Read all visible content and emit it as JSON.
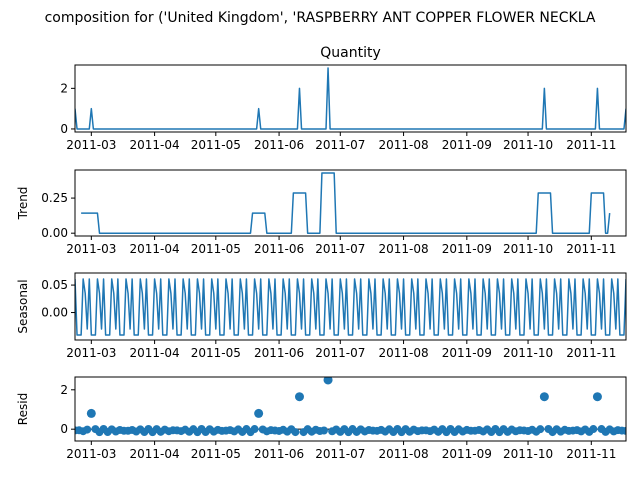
{
  "figure": {
    "title": "composition for ('United Kingdom', 'RASPBERRY ANT COPPER FLOWER NECKLA"
  },
  "colors": {
    "line": "#1f77b4",
    "axis": "#000000",
    "background": "#ffffff"
  },
  "x_tick_labels": [
    "2011-03",
    "2011-04",
    "2011-05",
    "2011-06",
    "2011-07",
    "2011-08",
    "2011-09",
    "2011-10",
    "2011-11"
  ],
  "chart_data": [
    {
      "type": "line",
      "title": "Quantity",
      "ylabel": "",
      "xlim": [
        "2011-02-21",
        "2011-11-18"
      ],
      "ylim": [
        -0.15,
        3.15
      ],
      "yticks": [
        0,
        2
      ],
      "ytick_labels": [
        "0",
        "2"
      ],
      "series": [
        {
          "points": [
            [
              "2011-02-21",
              1
            ],
            [
              "2011-02-22",
              0
            ],
            [
              "2011-02-28",
              0
            ],
            [
              "2011-03-01",
              1
            ],
            [
              "2011-03-02",
              0
            ],
            [
              "2011-05-21",
              0
            ],
            [
              "2011-05-22",
              1
            ],
            [
              "2011-05-23",
              0
            ],
            [
              "2011-06-10",
              0
            ],
            [
              "2011-06-11",
              2
            ],
            [
              "2011-06-12",
              0
            ],
            [
              "2011-06-24",
              0
            ],
            [
              "2011-06-25",
              3
            ],
            [
              "2011-06-26",
              0
            ],
            [
              "2011-10-08",
              0
            ],
            [
              "2011-10-09",
              2
            ],
            [
              "2011-10-10",
              0
            ],
            [
              "2011-11-03",
              0
            ],
            [
              "2011-11-04",
              2
            ],
            [
              "2011-11-05",
              0
            ],
            [
              "2011-11-17",
              0
            ],
            [
              "2011-11-18",
              1
            ]
          ]
        }
      ]
    },
    {
      "type": "line",
      "title": "",
      "ylabel": "Trend",
      "xlim": [
        "2011-02-21",
        "2011-11-18"
      ],
      "ylim": [
        -0.02,
        0.45
      ],
      "yticks": [
        0,
        0.25
      ],
      "ytick_labels": [
        "0.00",
        "0.25"
      ],
      "series": [
        {
          "points": [
            [
              "2011-02-24",
              0.143
            ],
            [
              "2011-02-25",
              0.143
            ],
            [
              "2011-02-26",
              0.143
            ],
            [
              "2011-03-04",
              0.143
            ],
            [
              "2011-03-05",
              0
            ],
            [
              "2011-05-18",
              0
            ],
            [
              "2011-05-19",
              0.143
            ],
            [
              "2011-05-25",
              0.143
            ],
            [
              "2011-05-26",
              0
            ],
            [
              "2011-06-07",
              0
            ],
            [
              "2011-06-08",
              0.286
            ],
            [
              "2011-06-14",
              0.286
            ],
            [
              "2011-06-15",
              0
            ],
            [
              "2011-06-21",
              0
            ],
            [
              "2011-06-22",
              0.429
            ],
            [
              "2011-06-28",
              0.429
            ],
            [
              "2011-06-29",
              0
            ],
            [
              "2011-10-05",
              0
            ],
            [
              "2011-10-06",
              0.286
            ],
            [
              "2011-10-12",
              0.286
            ],
            [
              "2011-10-13",
              0
            ],
            [
              "2011-10-31",
              0
            ],
            [
              "2011-11-01",
              0.286
            ],
            [
              "2011-11-07",
              0.286
            ],
            [
              "2011-11-08",
              0
            ],
            [
              "2011-11-09",
              0
            ],
            [
              "2011-11-10",
              0.143
            ]
          ]
        }
      ]
    },
    {
      "type": "line",
      "title": "",
      "ylabel": "Seasonal",
      "xlim": [
        "2011-02-21",
        "2011-11-18"
      ],
      "ylim": [
        -0.05,
        0.072
      ],
      "yticks": [
        0,
        0.05
      ],
      "ytick_labels": [
        "0.00",
        "0.05"
      ],
      "seasonal_period_days": 7,
      "seasonal_pattern": [
        0.061,
        -0.041,
        -0.041,
        -0.041,
        0.061,
        0.035,
        -0.03
      ],
      "series": [
        {
          "start": "2011-02-21",
          "end": "2011-11-18"
        }
      ]
    },
    {
      "type": "scatter",
      "title": "",
      "ylabel": "Resid",
      "xlim": [
        "2011-02-21",
        "2011-11-18"
      ],
      "ylim": [
        -0.6,
        2.65
      ],
      "yticks": [
        0,
        2
      ],
      "ytick_labels": [
        "0",
        "2"
      ],
      "baseline": 0,
      "sample_every_days": 2,
      "outliers": [
        [
          "2011-03-01",
          0.8
        ],
        [
          "2011-05-22",
          0.8
        ],
        [
          "2011-06-11",
          1.65
        ],
        [
          "2011-06-25",
          2.5
        ],
        [
          "2011-10-09",
          1.65
        ],
        [
          "2011-11-04",
          1.65
        ]
      ],
      "series": [
        {
          "start": "2011-02-21",
          "end": "2011-11-18"
        }
      ]
    }
  ]
}
